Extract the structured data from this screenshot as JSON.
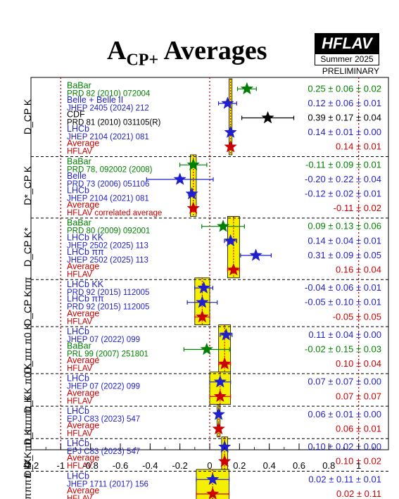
{
  "title": {
    "main": "A",
    "sub": "CP+",
    "rest": " Averages"
  },
  "logo": {
    "name": "HFLAV",
    "season": "Summer 2025",
    "status": "PRELIMINARY"
  },
  "colors": {
    "green": "#008000",
    "blue": "#1f1fcc",
    "black": "#000000",
    "red": "#cc0000",
    "band": "#f5f000",
    "band_border": "#000000"
  },
  "chart_data": {
    "type": "scatter",
    "title": "ACP+ Averages",
    "xlim": [
      -1.2,
      1.2
    ],
    "xticks": [
      "-1.2",
      "-1",
      "-0.8",
      "-0.6",
      "-0.4",
      "-0.2",
      "0",
      "0.2",
      "0.4",
      "0.6",
      "0.8",
      "1"
    ],
    "bottom_label": "D_",
    "groups": [
      {
        "label": "D_CP K",
        "average": 0.14,
        "error": 0.01,
        "measurements": [
          {
            "exp": "BaBar",
            "ref": "PRD 82 (2010) 072004",
            "color": "green",
            "value": 0.25,
            "stat": 0.06,
            "syst": 0.02,
            "text": "0.25 ± 0.06 ± 0.02"
          },
          {
            "exp": "Belle + Belle II",
            "ref": "JHEP 2405 (2024) 212",
            "color": "blue",
            "value": 0.12,
            "stat": 0.06,
            "syst": 0.01,
            "text": "0.12 ± 0.06 ± 0.01"
          },
          {
            "exp": "CDF",
            "ref": "PRD 81 (2010) 031105(R)",
            "color": "black",
            "value": 0.39,
            "stat": 0.17,
            "syst": 0.04,
            "text": "0.39 ± 0.17 ± 0.04"
          },
          {
            "exp": "LHCb",
            "ref": "JHEP 2104 (2021) 081",
            "color": "blue",
            "value": 0.14,
            "stat": 0.01,
            "syst": 0.0,
            "text": "0.14 ± 0.01 ± 0.00"
          },
          {
            "exp": "Average",
            "ref": "HFLAV",
            "color": "red",
            "value": 0.14,
            "stat": 0.01,
            "syst": 0,
            "text": "0.14 ± 0.01",
            "is_average": true
          }
        ]
      },
      {
        "label": "D*_CP K",
        "average": -0.11,
        "error": 0.02,
        "measurements": [
          {
            "exp": "BaBar",
            "ref": "PRD 78, 092002 (2008)",
            "color": "green",
            "value": -0.11,
            "stat": 0.09,
            "syst": 0.01,
            "text": "-0.11 ± 0.09 ± 0.01"
          },
          {
            "exp": "Belle",
            "ref": "PRD 73 (2006) 051106",
            "color": "blue",
            "value": -0.2,
            "stat": 0.22,
            "syst": 0.04,
            "text": "-0.20 ± 0.22 ± 0.04"
          },
          {
            "exp": "LHCb",
            "ref": "JHEP 2104 (2021) 081",
            "color": "blue",
            "value": -0.12,
            "stat": 0.02,
            "syst": 0.01,
            "text": "-0.12 ± 0.02 ± 0.01"
          },
          {
            "exp": "Average",
            "ref": "HFLAV correlated average",
            "color": "red",
            "value": -0.11,
            "stat": 0.02,
            "syst": 0,
            "text": "-0.11 ± 0.02",
            "is_average": true
          }
        ]
      },
      {
        "label": "D_CP K*",
        "average": 0.16,
        "error": 0.04,
        "measurements": [
          {
            "exp": "BaBar",
            "ref": "PRD 80 (2009) 092001",
            "color": "green",
            "value": 0.09,
            "stat": 0.13,
            "syst": 0.06,
            "text": "0.09 ± 0.13 ± 0.06"
          },
          {
            "exp": "LHCb KK",
            "ref": "JHEP 2502 (2025) 113",
            "color": "blue",
            "value": 0.14,
            "stat": 0.04,
            "syst": 0.01,
            "text": "0.14 ± 0.04 ± 0.01"
          },
          {
            "exp": "LHCb ππ",
            "ref": "JHEP 2502 (2025) 113",
            "color": "blue",
            "value": 0.31,
            "stat": 0.09,
            "syst": 0.05,
            "text": "0.31 ± 0.09 ± 0.05"
          },
          {
            "exp": "Average",
            "ref": "HFLAV",
            "color": "red",
            "value": 0.16,
            "stat": 0.04,
            "syst": 0,
            "text": "0.16 ± 0.04",
            "is_average": true
          }
        ]
      },
      {
        "label": "D_CP Kππ",
        "average": -0.05,
        "error": 0.05,
        "measurements": [
          {
            "exp": "LHCb KK",
            "ref": "PRD 92 (2015) 112005",
            "color": "blue",
            "value": -0.04,
            "stat": 0.06,
            "syst": 0.01,
            "text": "-0.04 ± 0.06 ± 0.01"
          },
          {
            "exp": "LHCb ππ",
            "ref": "PRD 92 (2015) 112005",
            "color": "blue",
            "value": -0.05,
            "stat": 0.1,
            "syst": 0.01,
            "text": "-0.05 ± 0.10 ± 0.01"
          },
          {
            "exp": "Average",
            "ref": "HFLAV",
            "color": "red",
            "value": -0.05,
            "stat": 0.05,
            "syst": 0,
            "text": "-0.05 ± 0.05",
            "is_average": true
          }
        ]
      },
      {
        "label": "D_ππ π0 K",
        "average": 0.1,
        "error": 0.04,
        "measurements": [
          {
            "exp": "LHCb",
            "ref": "JHEP 07 (2022) 099",
            "color": "blue",
            "value": 0.11,
            "stat": 0.04,
            "syst": 0.0,
            "text": "0.11 ± 0.04 ± 0.00"
          },
          {
            "exp": "BaBar",
            "ref": "PRL 99 (2007) 251801",
            "color": "green",
            "value": -0.02,
            "stat": 0.15,
            "syst": 0.03,
            "text": "-0.02 ± 0.15 ± 0.03"
          },
          {
            "exp": "Average",
            "ref": "HFLAV",
            "color": "red",
            "value": 0.1,
            "stat": 0.04,
            "syst": 0,
            "text": "0.10 ± 0.04",
            "is_average": true
          }
        ]
      },
      {
        "label": "D_KK π0 K",
        "average": 0.07,
        "error": 0.07,
        "measurements": [
          {
            "exp": "LHCb",
            "ref": "JHEP 07 (2022) 099",
            "color": "blue",
            "value": 0.07,
            "stat": 0.07,
            "syst": 0.0,
            "text": "0.07 ± 0.07 ± 0.00"
          },
          {
            "exp": "Average",
            "ref": "HFLAV",
            "color": "red",
            "value": 0.07,
            "stat": 0.07,
            "syst": 0,
            "text": "0.07 ± 0.07",
            "is_average": true
          }
        ]
      },
      {
        "label": "D_ππππ K",
        "average": 0.06,
        "error": 0.01,
        "measurements": [
          {
            "exp": "LHCb",
            "ref": "EPJ C83 (2023) 547",
            "color": "blue",
            "value": 0.06,
            "stat": 0.01,
            "syst": 0.0,
            "text": "0.06 ± 0.01 ± 0.00"
          },
          {
            "exp": "Average",
            "ref": "HFLAV",
            "color": "red",
            "value": 0.06,
            "stat": 0.01,
            "syst": 0,
            "text": "0.06 ± 0.01",
            "is_average": true
          }
        ]
      },
      {
        "label": "D_KKππ K",
        "average": 0.1,
        "error": 0.02,
        "measurements": [
          {
            "exp": "LHCb",
            "ref": "EPJ C83 (2023) 547",
            "color": "blue",
            "value": 0.1,
            "stat": 0.02,
            "syst": 0.0,
            "text": "0.10 ± 0.02 ± 0.00"
          },
          {
            "exp": "Average",
            "ref": "HFLAV",
            "color": "red",
            "value": 0.1,
            "stat": 0.02,
            "syst": 0,
            "text": "0.10 ± 0.02",
            "is_average": true
          }
        ]
      },
      {
        "label": "D_ππππ K*",
        "average": 0.02,
        "error": 0.11,
        "measurements": [
          {
            "exp": "LHCb",
            "ref": "JHEP 1711 (2017) 156",
            "color": "blue",
            "value": 0.02,
            "stat": 0.11,
            "syst": 0.01,
            "text": "0.02 ± 0.11 ± 0.01"
          },
          {
            "exp": "Average",
            "ref": "HFLAV",
            "color": "red",
            "value": 0.02,
            "stat": 0.11,
            "syst": 0,
            "text": "0.02 ± 0.11",
            "is_average": true
          }
        ]
      }
    ]
  }
}
